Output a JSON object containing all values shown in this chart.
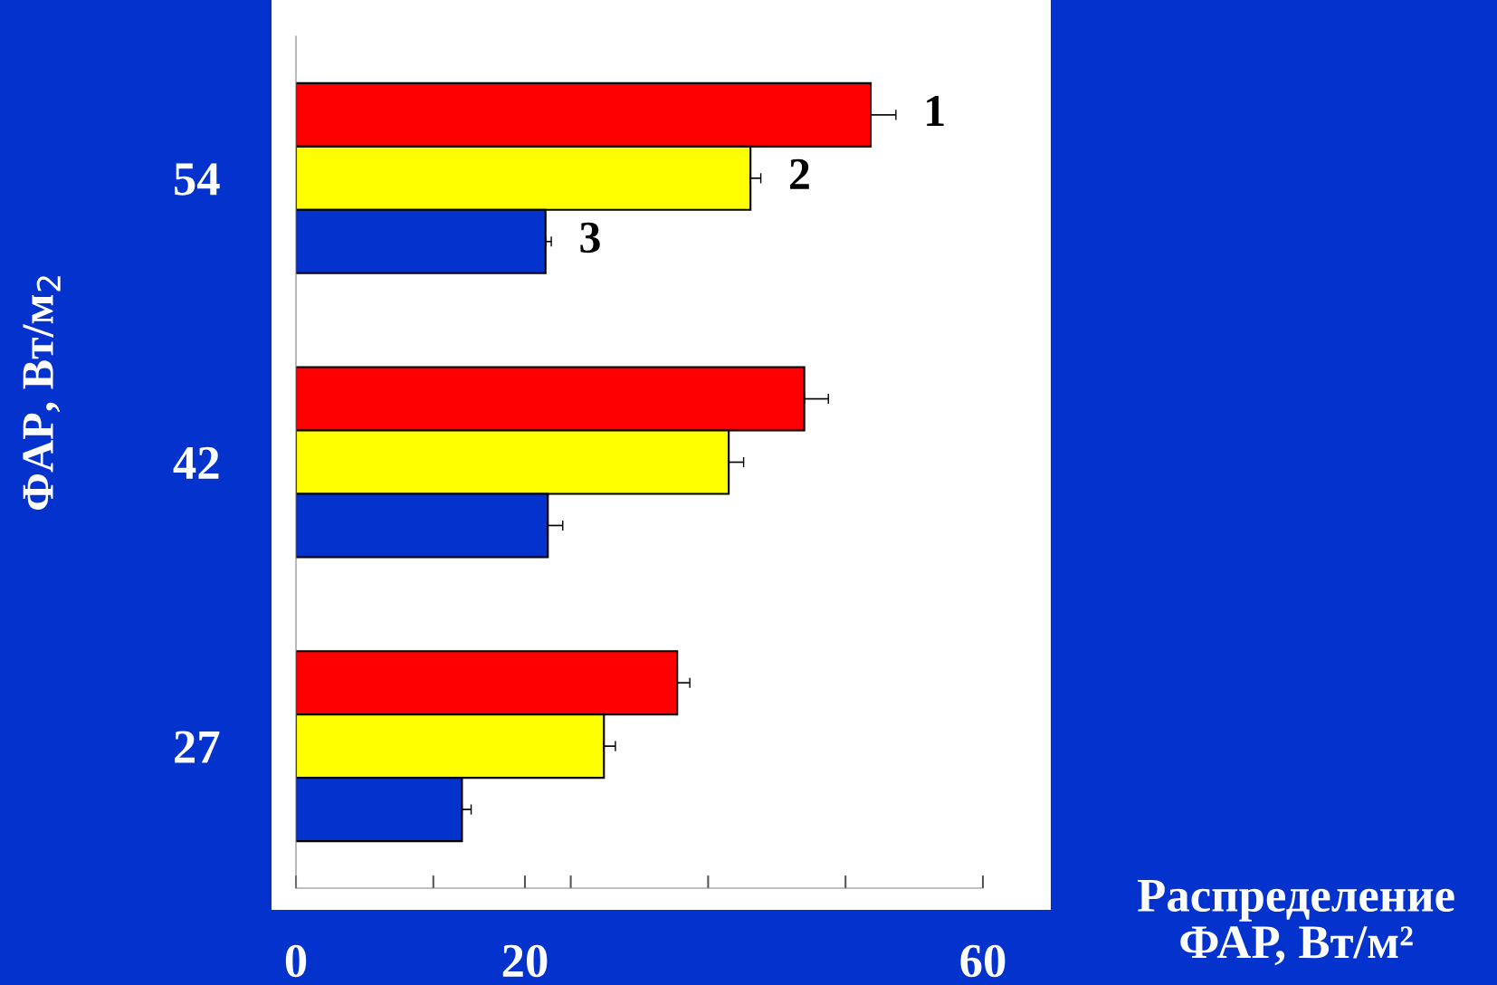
{
  "chart_data": {
    "type": "bar",
    "orientation": "horizontal",
    "ylabel": "ФАР, Вт/м$_{2}$",
    "xlabel": "Распределение\nФАР, Вт/м²",
    "categories": [
      "54",
      "42",
      "27"
    ],
    "series": [
      {
        "name": "1",
        "color": "#ff0000",
        "values": [
          50.2,
          44.4,
          33.3
        ],
        "errors": [
          2.2,
          2.1,
          1.1
        ]
      },
      {
        "name": "2",
        "color": "#ffff00",
        "values": [
          39.7,
          37.8,
          26.9
        ],
        "errors": [
          0.9,
          1.3,
          1.0
        ]
      },
      {
        "name": "3",
        "color": "#0432cc",
        "values": [
          21.8,
          22.0,
          14.5
        ],
        "errors": [
          0.5,
          1.3,
          0.8
        ]
      }
    ],
    "xlim": [
      0,
      60
    ],
    "xticks": [
      0,
      {
        "value": 12,
        "label": null
      },
      20,
      {
        "value": 24,
        "label": null
      },
      {
        "value": 36,
        "label": null
      },
      {
        "value": 48,
        "label": null
      },
      60
    ]
  }
}
